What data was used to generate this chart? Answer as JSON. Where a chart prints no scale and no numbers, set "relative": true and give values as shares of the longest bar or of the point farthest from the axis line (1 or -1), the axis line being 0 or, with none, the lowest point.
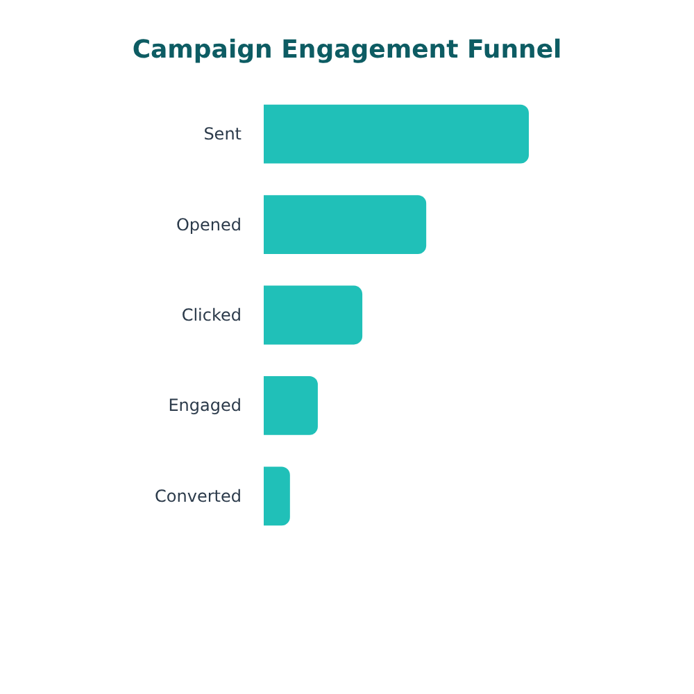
{
  "chart_data": {
    "type": "bar",
    "title": "Campaign Engagement Funnel",
    "orientation": "horizontal",
    "relative": true,
    "categories": [
      "Sent",
      "Opened",
      "Clicked",
      "Engaged",
      "Converted"
    ],
    "values": [
      1,
      0.613,
      0.372,
      0.204,
      0.099
    ],
    "color": "#20c0b8"
  }
}
